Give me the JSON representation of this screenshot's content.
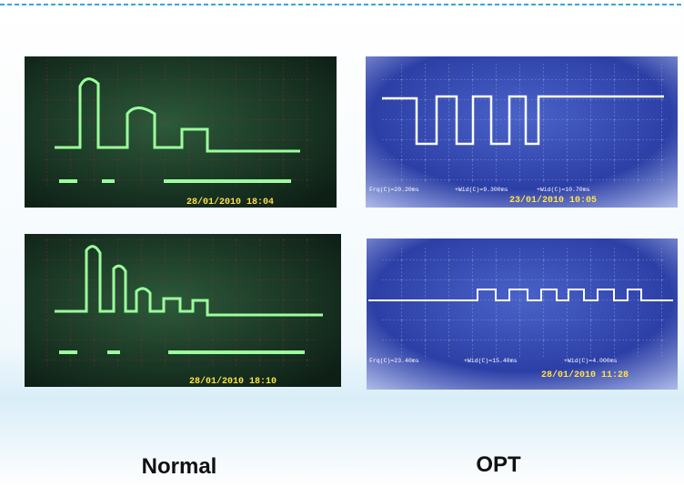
{
  "panels": [
    {
      "timestamp": "28/01/2010 18:04"
    },
    {
      "timestamp": "23/01/2010 10:05",
      "readouts": [
        "Frq(C)=20.20ms",
        "+Wid(C)=9.300ms",
        "+Wid(C)=10.70ms"
      ]
    },
    {
      "timestamp": "28/01/2010 18:10"
    },
    {
      "timestamp": "28/01/2010 11:28",
      "readouts": [
        "Frq(C)=23.40ms",
        "+Wid(C)=15.40ms",
        "+Wid(C)=4.000ms"
      ]
    }
  ],
  "labels": [
    "Normal",
    "OPT"
  ]
}
